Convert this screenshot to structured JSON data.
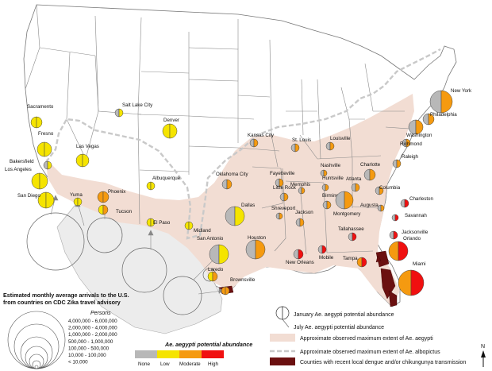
{
  "cities": [
    {
      "name": "Sacramento",
      "jan": "low",
      "jul": "low"
    },
    {
      "name": "Fresno",
      "jan": "low",
      "jul": "low"
    },
    {
      "name": "Bakersfield",
      "jan": "none",
      "jul": "low"
    },
    {
      "name": "Los Angeles",
      "jan": "low",
      "jul": "low"
    },
    {
      "name": "San Diego",
      "jan": "low",
      "jul": "low"
    },
    {
      "name": "Las Vegas",
      "jan": "low",
      "jul": "low"
    },
    {
      "name": "Salt Lake City",
      "jan": "none",
      "jul": "low"
    },
    {
      "name": "Denver",
      "jan": "low",
      "jul": "low"
    },
    {
      "name": "Phoenix",
      "jan": "moderate",
      "jul": "moderate"
    },
    {
      "name": "Yuma",
      "jan": "low",
      "jul": "low"
    },
    {
      "name": "Tucson",
      "jan": "low",
      "jul": "moderate"
    },
    {
      "name": "Albuquerque",
      "jan": "low",
      "jul": "low"
    },
    {
      "name": "El Paso",
      "jan": "low",
      "jul": "low"
    },
    {
      "name": "Midland",
      "jan": "low",
      "jul": "low"
    },
    {
      "name": "Dallas",
      "jan": "none",
      "jul": "low"
    },
    {
      "name": "Oklahoma City",
      "jan": "none",
      "jul": "moderate"
    },
    {
      "name": "San Antonio",
      "jan": "none",
      "jul": "low"
    },
    {
      "name": "Laredo",
      "jan": "low",
      "jul": "moderate"
    },
    {
      "name": "Brownsville",
      "jan": "moderate",
      "jul": "moderate"
    },
    {
      "name": "Houston",
      "jan": "none",
      "jul": "moderate"
    },
    {
      "name": "Kansas City",
      "jan": "none",
      "jul": "moderate"
    },
    {
      "name": "St. Louis",
      "jan": "none",
      "jul": "moderate"
    },
    {
      "name": "Louisville",
      "jan": "none",
      "jul": "moderate"
    },
    {
      "name": "Fayetteville",
      "jan": "none",
      "jul": "moderate"
    },
    {
      "name": "Nashville",
      "jan": "none",
      "jul": "moderate"
    },
    {
      "name": "Memphis",
      "jan": "none",
      "jul": "moderate"
    },
    {
      "name": "Little Rock",
      "jan": "none",
      "jul": "moderate"
    },
    {
      "name": "Huntsville",
      "jan": "none",
      "jul": "moderate"
    },
    {
      "name": "Birmingham",
      "jan": "none",
      "jul": "moderate"
    },
    {
      "name": "Shreveport",
      "jan": "none",
      "jul": "moderate"
    },
    {
      "name": "Jackson",
      "jan": "none",
      "jul": "moderate"
    },
    {
      "name": "Montgomery",
      "jan": "none",
      "jul": "moderate"
    },
    {
      "name": "New Orleans",
      "jan": "none",
      "jul": "high"
    },
    {
      "name": "Mobile",
      "jan": "none",
      "jul": "high"
    },
    {
      "name": "Tallahassee",
      "jan": "none",
      "jul": "high"
    },
    {
      "name": "Tampa",
      "jan": "moderate",
      "jul": "high"
    },
    {
      "name": "Orlando",
      "jan": "moderate",
      "jul": "high"
    },
    {
      "name": "Jacksonville",
      "jan": "none",
      "jul": "high"
    },
    {
      "name": "Miami",
      "jan": "moderate",
      "jul": "high"
    },
    {
      "name": "Savannah",
      "jan": "none",
      "jul": "high"
    },
    {
      "name": "Charleston",
      "jan": "none",
      "jul": "high"
    },
    {
      "name": "Augusta",
      "jan": "none",
      "jul": "moderate"
    },
    {
      "name": "Columbia",
      "jan": "none",
      "jul": "moderate"
    },
    {
      "name": "Atlanta",
      "jan": "none",
      "jul": "moderate"
    },
    {
      "name": "Charlotte",
      "jan": "none",
      "jul": "moderate"
    },
    {
      "name": "Raleigh",
      "jan": "none",
      "jul": "moderate"
    },
    {
      "name": "Richmond",
      "jan": "none",
      "jul": "moderate"
    },
    {
      "name": "Washington",
      "jan": "none",
      "jul": "moderate"
    },
    {
      "name": "Philadelphia",
      "jan": "none",
      "jul": "moderate"
    },
    {
      "name": "New York",
      "jan": "none",
      "jul": "moderate"
    }
  ],
  "abundance_colors": {
    "none": "#b8b8b8",
    "low": "#f5e400",
    "moderate": "#f59a10",
    "high": "#f01010"
  },
  "region_colors": {
    "aegypti_extent": "#f2ddd3",
    "albopictus_line": "#c9c9c9",
    "transmission_counties": "#6b1010",
    "land": "#ffffff",
    "arrivals_zone": "#ececec"
  },
  "arrivals_legend": {
    "title": "Estimated monthly average arrivals to the U.S. from countries on CDC Zika travel advisory",
    "units": "Persons",
    "classes": [
      "4,000,000 - 6,000,000",
      "2,000,000 - 4,000,000",
      "1,000,000 - 2,000,000",
      "500,000 - 1,000,000",
      "100,000 - 500,000",
      "10,000 - 100,000",
      "< 10,000"
    ]
  },
  "potential_legend": {
    "title": "Ae. aegypti potential abundance",
    "labels": [
      "None",
      "Low",
      "Moderate",
      "High"
    ]
  },
  "map_legend": {
    "january": "January Ae. aegypti potential abundance",
    "july": "July Ae. aegypti potential abundance",
    "aegypti_extent": "Approximate observed maximum extent of Ae. aegypti",
    "albopictus_extent": "Approximate observed maximum extent of Ae. albopictus",
    "transmission": "Counties with recent local dengue and/or chikungunya transmission"
  },
  "north_arrow": "N"
}
